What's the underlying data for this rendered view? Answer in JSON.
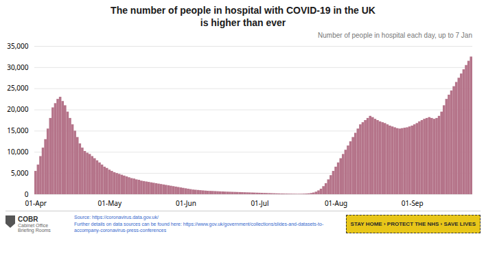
{
  "chart_data": {
    "type": "bar",
    "title": "The number of people in hospital with COVID-19 in the UK\nis higher than ever",
    "subtitle": "Number of people in hospital each day, up to 7 Jan",
    "categories": [
      "01-Apr",
      null,
      null,
      null,
      null,
      null,
      null,
      null,
      null,
      null,
      null,
      null,
      null,
      null,
      null,
      null,
      null,
      null,
      null,
      null,
      null,
      null,
      null,
      null,
      null,
      null,
      null,
      null,
      null,
      null,
      "01-May",
      null,
      null,
      null,
      null,
      null,
      null,
      null,
      null,
      null,
      null,
      null,
      null,
      null,
      null,
      null,
      null,
      null,
      null,
      null,
      null,
      null,
      null,
      null,
      null,
      null,
      null,
      null,
      null,
      null,
      null,
      "01-Jun",
      null,
      null,
      null,
      null,
      null,
      null,
      null,
      null,
      null,
      null,
      null,
      null,
      null,
      null,
      null,
      null,
      null,
      null,
      null,
      null,
      null,
      null,
      null,
      null,
      null,
      null,
      null,
      null,
      null,
      "01-Jul",
      null,
      null,
      null,
      null,
      null,
      null,
      null,
      null,
      null,
      null,
      null,
      null,
      null,
      null,
      null,
      null,
      null,
      null,
      null,
      null,
      null,
      null,
      null,
      null,
      null,
      null,
      null,
      null,
      null,
      null,
      "01-Aug",
      null,
      null,
      null,
      null,
      null,
      null,
      null,
      null,
      null,
      null,
      null,
      null,
      null,
      null,
      null,
      null,
      null,
      null,
      null,
      null,
      null,
      null,
      null,
      null,
      null,
      null,
      null,
      null,
      null,
      null,
      "01-Sep",
      null,
      null,
      null,
      null,
      null,
      null,
      null,
      null,
      null,
      null,
      null,
      null,
      null,
      null,
      null,
      null,
      null,
      null,
      null,
      null,
      null,
      null,
      null,
      null
    ],
    "values": [
      5500,
      7000,
      9000,
      11000,
      13000,
      15500,
      18000,
      20500,
      21500,
      22500,
      23000,
      22000,
      21000,
      19500,
      18000,
      16500,
      15000,
      13500,
      12000,
      11000,
      10200,
      9800,
      9500,
      9000,
      8500,
      8000,
      7500,
      7000,
      6500,
      6200,
      5800,
      5500,
      5200,
      5000,
      4800,
      4600,
      4400,
      4200,
      4000,
      3800,
      3700,
      3500,
      3400,
      3200,
      3100,
      3000,
      2900,
      2800,
      2700,
      2600,
      2500,
      2400,
      2300,
      2200,
      2100,
      2000,
      1900,
      1800,
      1700,
      1600,
      1500,
      1400,
      1300,
      1200,
      1100,
      1050,
      1000,
      950,
      900,
      850,
      800,
      780,
      760,
      730,
      700,
      670,
      650,
      620,
      600,
      580,
      560,
      540,
      520,
      500,
      480,
      460,
      440,
      420,
      400,
      380,
      360,
      340,
      320,
      300,
      280,
      260,
      240,
      220,
      200,
      180,
      160,
      150,
      140,
      130,
      120,
      110,
      100,
      100,
      110,
      130,
      160,
      200,
      280,
      400,
      600,
      900,
      1300,
      1900,
      2600,
      3500,
      4500,
      5500,
      6500,
      7500,
      8500,
      9500,
      10500,
      11500,
      12500,
      13500,
      14500,
      15500,
      16500,
      17000,
      17500,
      18000,
      18500,
      18200,
      17800,
      17500,
      17200,
      17000,
      16800,
      16500,
      16200,
      16000,
      15800,
      15600,
      15500,
      15600,
      15700,
      15800,
      16000,
      16200,
      16500,
      16800,
      17200,
      17500,
      17800,
      18000,
      18200,
      18000,
      17800,
      18000,
      18500,
      19500,
      21000,
      22500,
      23500,
      24500,
      25500,
      26500,
      27500,
      28500,
      29500,
      30500,
      31500,
      32500
    ],
    "color": "#b5748a",
    "ylim": [
      0,
      35000
    ],
    "yticks": [
      0,
      {
        "value": 5000,
        "label": "5,000"
      },
      {
        "value": 10000,
        "label": "10,000"
      },
      {
        "value": 15000,
        "label": "15,000"
      },
      {
        "value": 20000,
        "label": "20,000"
      },
      {
        "value": 25000,
        "label": "25,000"
      },
      {
        "value": 30000,
        "label": "30,000"
      },
      {
        "value": 35000,
        "label": "35,000"
      }
    ],
    "grid": true,
    "annotations": [
      {
        "text": "COBR"
      },
      {
        "text": "Cabinet Office"
      },
      {
        "text": "Briefing Rooms"
      },
      {
        "text": "Source: https://coronavirus.data.gov.uk/",
        "color": "#3366cc"
      },
      {
        "text": "Further details on data sources can be found here: https://www.gov.uk/government/collections/slides-and-datasets-to-",
        "color": "#3366cc"
      },
      {
        "text": "accompany-coronavirus-press-conferences",
        "color": "#3366cc"
      },
      {
        "text": "STAY HOME › PROTECT THE NHS › SAVE LIVES",
        "color": "#e8c619"
      }
    ]
  }
}
